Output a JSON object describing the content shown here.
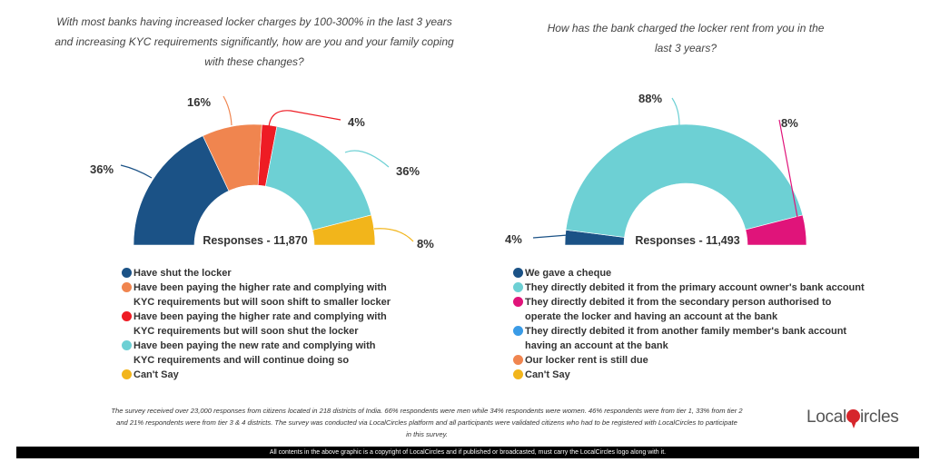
{
  "chart_data": [
    {
      "type": "pie",
      "variant": "half-donut",
      "title": "With most banks having increased locker charges by 100-300% in the last 3 years and increasing KYC requirements significantly, how are you and your family coping with these changes?",
      "center_label": "Responses - 11,870",
      "categories": [
        "Have shut the locker",
        "Have been paying the higher rate and complying with KYC requirements but will soon shift to smaller locker",
        "Have been paying the higher rate and complying with KYC requirements but will soon shut the locker",
        "Have been paying the new rate and complying with KYC requirements and will continue doing so",
        "Can't Say"
      ],
      "values": [
        36,
        16,
        4,
        36,
        8
      ],
      "labels": [
        "36%",
        "16%",
        "4%",
        "36%",
        "8%"
      ],
      "colors": [
        "#1b5286",
        "#f0854f",
        "#ee1c24",
        "#6dd0d4",
        "#f2b51b"
      ],
      "legend_position": "bottom"
    },
    {
      "type": "pie",
      "variant": "half-donut",
      "title": "How has the bank charged the locker rent from you in the last 3 years?",
      "center_label": "Responses - 11,493",
      "categories": [
        "We gave a cheque",
        "They directly debited it from the primary account owner's bank account",
        "They directly debited it from the secondary person authorised to operate the locker and having an account at the bank",
        "They directly debited it from another family member's bank account having an account at the bank",
        "Our locker rent is still due",
        "Can't Say"
      ],
      "values": [
        4,
        88,
        8,
        0,
        0,
        0
      ],
      "labels": [
        "4%",
        "88%",
        "8%"
      ],
      "colors": [
        "#1b5286",
        "#6dd0d4",
        "#e0147a",
        "#3a9be6",
        "#f0854f",
        "#f2b51b"
      ],
      "legend_position": "bottom"
    }
  ],
  "left": {
    "title_lines": [
      "With most banks having increased locker charges by 100-300% in the last 3 years",
      "and increasing KYC requirements significantly, how are you and your family coping",
      "with these changes?"
    ],
    "legend": [
      [
        "Have shut the locker"
      ],
      [
        "Have been paying the higher rate and complying with",
        "KYC requirements but will soon shift to smaller locker"
      ],
      [
        "Have been paying the higher rate and complying with",
        "KYC requirements but will soon shut the locker"
      ],
      [
        "Have been paying the new rate and complying with",
        "KYC requirements and will continue doing so"
      ],
      [
        "Can't Say"
      ]
    ]
  },
  "right": {
    "title_lines": [
      "How has the bank charged the locker rent from you in the",
      "last 3 years?"
    ],
    "legend": [
      [
        "We gave a cheque"
      ],
      [
        "They directly debited it from the primary account owner's bank account"
      ],
      [
        "They directly debited it from the secondary person authorised to",
        "operate the locker and having an account at the bank"
      ],
      [
        "They directly debited it from another family member's bank account",
        "having an account at the bank"
      ],
      [
        "Our locker rent is still due"
      ],
      [
        "Can't Say"
      ]
    ]
  },
  "note_lines": [
    "The survey received over 23,000 responses from citizens located in 218 districts of India. 66% respondents were men while 34% respondents were women. 46% respondents were from tier 1, 33% from tier 2",
    "and 21% respondents were from tier 3 & 4 districts. The survey was conducted via LocalCircles platform and all participants were validated citizens who had to be registered with LocalCircles to participate",
    "in this survey."
  ],
  "logo": {
    "text_before": "Local",
    "text_after": "ircles"
  },
  "footer": "All contents in the above graphic is a copyright of LocalCircles and if published or broadcasted, must carry the LocalCircles logo along with it."
}
